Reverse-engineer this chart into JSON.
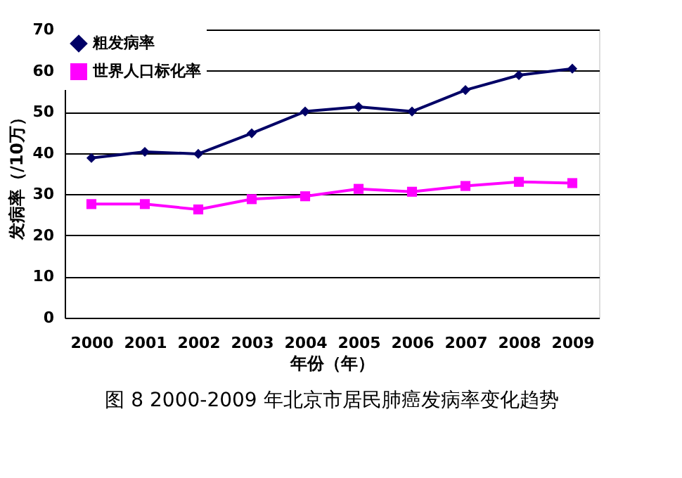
{
  "chart_data": {
    "type": "line",
    "title": "图 8    2000-2009 年北京市居民肺癌发病率变化趋势",
    "xlabel": "年份（年）",
    "ylabel": "发病率（/10万）",
    "categories": [
      "2000",
      "2001",
      "2002",
      "2003",
      "2004",
      "2005",
      "2006",
      "2007",
      "2008",
      "2009"
    ],
    "series": [
      {
        "name": "粗发病率",
        "color": "#000066",
        "marker": "diamond",
        "values": [
          38.8,
          40.3,
          39.8,
          44.8,
          50.1,
          51.2,
          50.1,
          55.3,
          58.9,
          60.5
        ]
      },
      {
        "name": "世界人口标化率",
        "color": "#ff00ff",
        "marker": "square",
        "values": [
          27.6,
          27.6,
          26.3,
          28.8,
          29.5,
          31.3,
          30.6,
          32.0,
          33.0,
          32.7
        ]
      }
    ],
    "ylim": [
      0,
      70
    ],
    "yticks": [
      0,
      10,
      20,
      30,
      40,
      50,
      60,
      70
    ],
    "grid": "y",
    "legend": "top left",
    "line_style": "solid"
  }
}
